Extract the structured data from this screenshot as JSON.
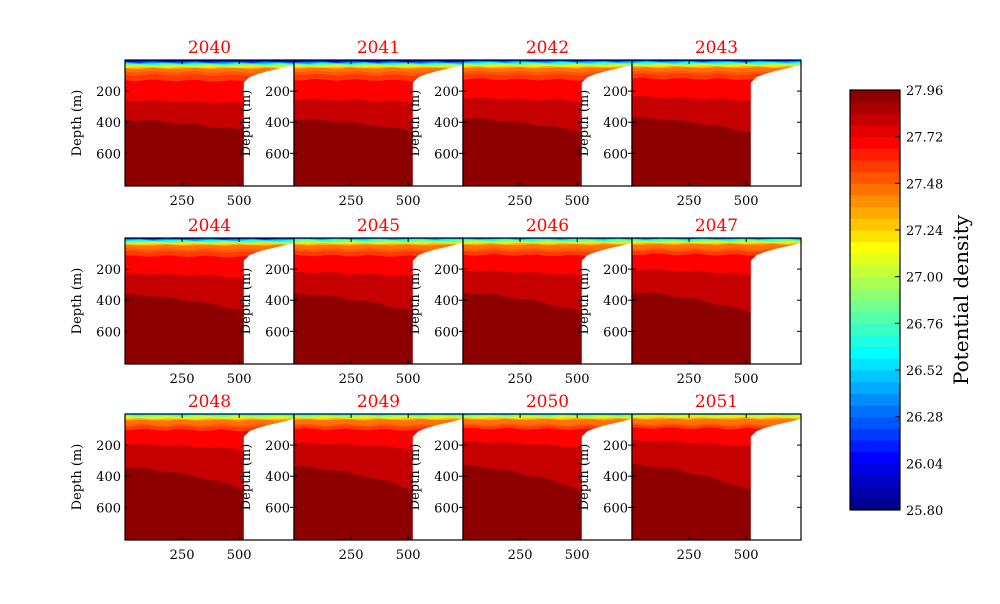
{
  "chart_data": {
    "type": "heatmap",
    "panels": [
      {
        "title": "2040",
        "shelf_edge": 520
      },
      {
        "title": "2041",
        "shelf_edge": 520
      },
      {
        "title": "2042",
        "shelf_edge": 520
      },
      {
        "title": "2043",
        "shelf_edge": 520
      },
      {
        "title": "2044",
        "shelf_edge": 520
      },
      {
        "title": "2045",
        "shelf_edge": 520
      },
      {
        "title": "2046",
        "shelf_edge": 520
      },
      {
        "title": "2047",
        "shelf_edge": 520
      },
      {
        "title": "2048",
        "shelf_edge": 520
      },
      {
        "title": "2049",
        "shelf_edge": 520
      },
      {
        "title": "2050",
        "shelf_edge": 520
      },
      {
        "title": "2051",
        "shelf_edge": 520
      }
    ],
    "ylabel": "Depth (m)",
    "xticks": [
      250,
      500
    ],
    "yticks": [
      200,
      400,
      600
    ],
    "colorbar": {
      "label": "Potential density",
      "ticks": [
        "27.96",
        "27.72",
        "27.48",
        "27.24",
        "27.00",
        "26.76",
        "26.52",
        "26.28",
        "26.04",
        "25.80"
      ]
    }
  }
}
